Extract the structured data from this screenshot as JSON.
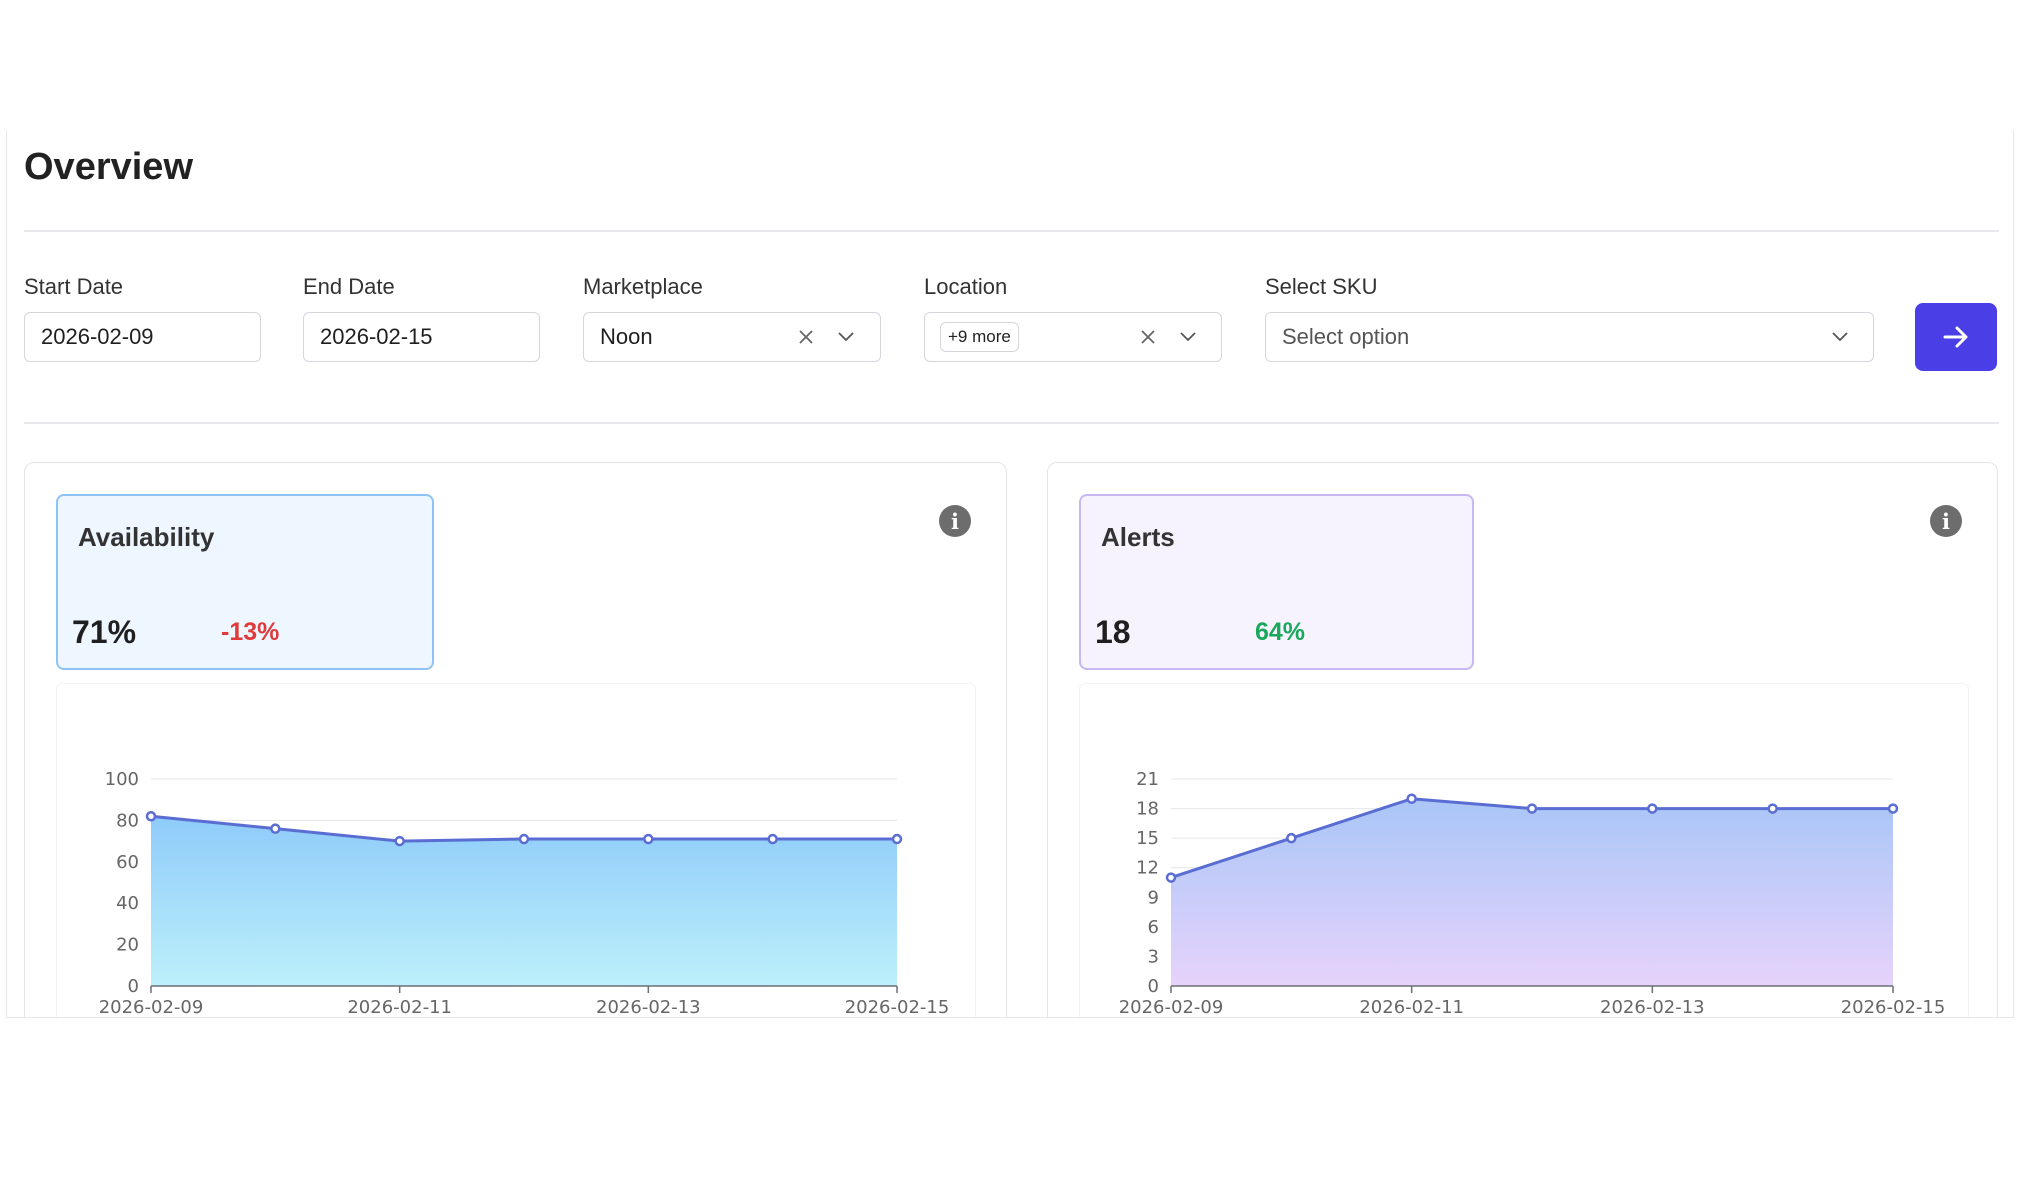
{
  "page_title": "Overview",
  "filters": {
    "start_date": {
      "label": "Start Date",
      "value": "2026-02-09"
    },
    "end_date": {
      "label": "End Date",
      "value": "2026-02-15"
    },
    "marketplace": {
      "label": "Marketplace",
      "value": "Noon"
    },
    "location": {
      "label": "Location",
      "tag": "+9 more"
    },
    "sku": {
      "label": "Select SKU",
      "placeholder": "Select option"
    }
  },
  "go_button_icon": "arrow-right-icon",
  "cards": [
    {
      "title": "Availability",
      "value": "71%",
      "change": "-13%",
      "change_color": "#e03b3b",
      "border_color": "#8fc3f5",
      "bg_color": "#eef6ff"
    },
    {
      "title": "Alerts",
      "value": "18",
      "change": "64%",
      "change_color": "#1aa85a",
      "border_color": "#c7b7f2",
      "bg_color": "#f6f3ff"
    }
  ],
  "chart_data": [
    {
      "type": "area",
      "title": "",
      "xlabel": "",
      "ylabel": "",
      "x": [
        "2026-02-09",
        "2026-02-10",
        "2026-02-11",
        "2026-02-12",
        "2026-02-13",
        "2026-02-14",
        "2026-02-15"
      ],
      "x_tick_labels": [
        "2026-02-09",
        "2026-02-11",
        "2026-02-13",
        "2026-02-15"
      ],
      "y_ticks": [
        0,
        20,
        40,
        60,
        80,
        100
      ],
      "ylim": [
        0,
        100
      ],
      "series": [
        {
          "values": [
            82,
            76,
            70,
            71,
            71,
            71,
            71
          ]
        }
      ],
      "line_color": "#5a6dd3",
      "fill_top": "#8ecbf9",
      "fill_bottom": "#bdf0fb",
      "grid": true
    },
    {
      "type": "area",
      "title": "",
      "xlabel": "",
      "ylabel": "",
      "x": [
        "2026-02-09",
        "2026-02-10",
        "2026-02-11",
        "2026-02-12",
        "2026-02-13",
        "2026-02-14",
        "2026-02-15"
      ],
      "x_tick_labels": [
        "2026-02-09",
        "2026-02-11",
        "2026-02-13",
        "2026-02-15"
      ],
      "y_ticks": [
        0,
        3,
        6,
        9,
        12,
        15,
        18,
        21
      ],
      "ylim": [
        0,
        21
      ],
      "series": [
        {
          "values": [
            11,
            15,
            19,
            18,
            18,
            18,
            18
          ]
        }
      ],
      "line_color": "#5a6dd3",
      "fill_top": "#a9c6f7",
      "fill_bottom": "#e6d3fb",
      "grid": true
    }
  ]
}
